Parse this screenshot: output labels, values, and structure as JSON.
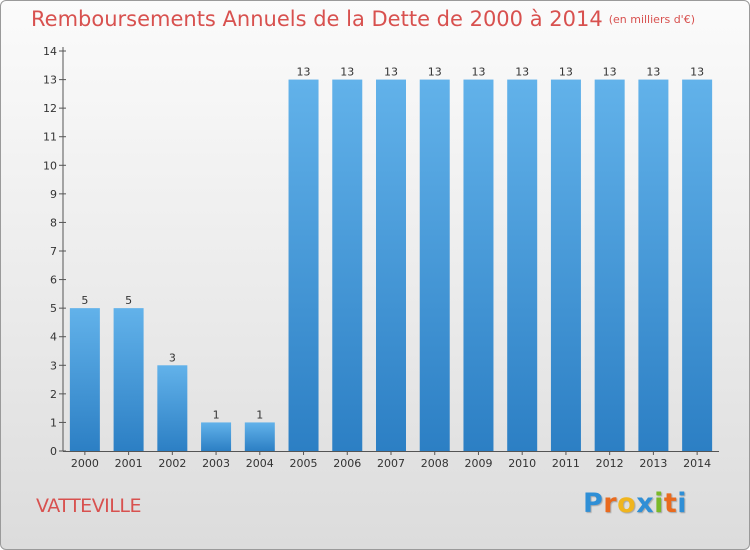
{
  "title": "Remboursements Annuels de la Dette de 2000 à 2014",
  "subtitle": "(en milliers d'€)",
  "place": "VATTEVILLE",
  "logo": {
    "letters": [
      "P",
      "r",
      "o",
      "x",
      "i",
      "t",
      "i"
    ],
    "colors": [
      "#2f8fd6",
      "#e96a1e",
      "#f0b51e",
      "#2f8fd6",
      "#7ab929",
      "#e96a1e",
      "#2f8fd6"
    ]
  },
  "colors": {
    "bar": "#3a93d6",
    "bar_light": "#62b2ea",
    "accent": "#d8514f"
  },
  "chart_data": {
    "type": "bar",
    "categories": [
      "2000",
      "2001",
      "2002",
      "2003",
      "2004",
      "2005",
      "2006",
      "2007",
      "2008",
      "2009",
      "2010",
      "2011",
      "2012",
      "2013",
      "2014"
    ],
    "values": [
      5,
      5,
      3,
      1,
      1,
      13,
      13,
      13,
      13,
      13,
      13,
      13,
      13,
      13,
      13
    ],
    "ylim": [
      0,
      14
    ],
    "yticks": [
      0,
      1,
      2,
      3,
      4,
      5,
      6,
      7,
      8,
      9,
      10,
      11,
      12,
      13,
      14
    ],
    "grid": false,
    "xlabel": "",
    "ylabel": ""
  }
}
